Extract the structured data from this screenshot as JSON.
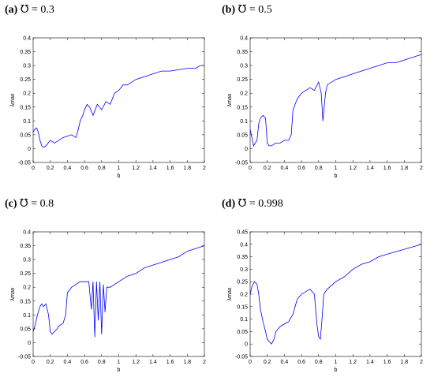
{
  "chart_data": [
    {
      "type": "line",
      "label": "(a)",
      "title": "℧ = 0.3",
      "xlabel": "b",
      "ylabel": "λmax",
      "xlim": [
        0,
        2
      ],
      "ylim": [
        -0.05,
        0.4
      ],
      "xticks": [
        "0",
        "0.2",
        "0.4",
        "0.6",
        "0.8",
        "1",
        "1.2",
        "1.4",
        "1.6",
        "1.8",
        "2"
      ],
      "yticks": [
        "-0.05",
        "0",
        "0.05",
        "0.1",
        "0.15",
        "0.2",
        "0.25",
        "0.3",
        "0.35",
        "0.4"
      ],
      "color": "#0000ff",
      "series": [
        {
          "x": [
            0,
            0.02,
            0.04,
            0.06,
            0.08,
            0.1,
            0.12,
            0.15,
            0.2,
            0.25,
            0.3,
            0.35,
            0.4,
            0.45,
            0.5,
            0.52,
            0.55,
            0.58,
            0.6,
            0.63,
            0.66,
            0.7,
            0.75,
            0.8,
            0.85,
            0.9,
            0.95,
            1.0,
            1.05,
            1.1,
            1.15,
            1.2,
            1.3,
            1.4,
            1.5,
            1.6,
            1.7,
            1.8,
            1.9,
            1.95,
            2.0
          ],
          "y": [
            0.06,
            0.07,
            0.075,
            0.06,
            0.03,
            0.01,
            0.005,
            0.01,
            0.03,
            0.02,
            0.03,
            0.04,
            0.045,
            0.05,
            0.04,
            0.06,
            0.1,
            0.12,
            0.14,
            0.16,
            0.15,
            0.12,
            0.16,
            0.14,
            0.17,
            0.16,
            0.2,
            0.21,
            0.23,
            0.23,
            0.24,
            0.25,
            0.26,
            0.27,
            0.28,
            0.28,
            0.285,
            0.29,
            0.29,
            0.3,
            0.3
          ]
        }
      ]
    },
    {
      "type": "line",
      "label": "(b)",
      "title": "℧ = 0.5",
      "xlabel": "b",
      "ylabel": "λmax",
      "xlim": [
        0,
        2
      ],
      "ylim": [
        -0.05,
        0.4
      ],
      "xticks": [
        "0",
        "0.2",
        "0.4",
        "0.6",
        "0.8",
        "1",
        "1.2",
        "1.4",
        "1.6",
        "1.8",
        "2"
      ],
      "yticks": [
        "-0.05",
        "0",
        "0.05",
        "0.1",
        "0.15",
        "0.2",
        "0.25",
        "0.3",
        "0.35",
        "0.4"
      ],
      "color": "#0000ff",
      "series": [
        {
          "x": [
            0,
            0.02,
            0.04,
            0.06,
            0.08,
            0.1,
            0.12,
            0.15,
            0.18,
            0.2,
            0.22,
            0.25,
            0.3,
            0.35,
            0.4,
            0.45,
            0.48,
            0.5,
            0.55,
            0.6,
            0.65,
            0.7,
            0.75,
            0.8,
            0.83,
            0.85,
            0.88,
            0.9,
            0.95,
            1.0,
            1.1,
            1.2,
            1.3,
            1.4,
            1.5,
            1.6,
            1.7,
            1.8,
            1.9,
            2.0
          ],
          "y": [
            0.07,
            0.04,
            0.01,
            0.02,
            0.03,
            0.09,
            0.11,
            0.12,
            0.11,
            0.02,
            0.01,
            0.01,
            0.02,
            0.02,
            0.03,
            0.03,
            0.05,
            0.14,
            0.18,
            0.2,
            0.21,
            0.22,
            0.21,
            0.24,
            0.2,
            0.1,
            0.2,
            0.23,
            0.24,
            0.25,
            0.26,
            0.27,
            0.28,
            0.29,
            0.3,
            0.31,
            0.31,
            0.32,
            0.33,
            0.34
          ]
        }
      ]
    },
    {
      "type": "line",
      "label": "(c)",
      "title": "℧ = 0.8",
      "xlabel": "b",
      "ylabel": "λmax",
      "xlim": [
        0,
        2
      ],
      "ylim": [
        -0.05,
        0.4
      ],
      "xticks": [
        "0",
        "0.2",
        "0.4",
        "0.6",
        "0.8",
        "1",
        "1.2",
        "1.4",
        "1.6",
        "1.8",
        "2"
      ],
      "yticks": [
        "-0.05",
        "0",
        "0.05",
        "0.1",
        "0.15",
        "0.2",
        "0.25",
        "0.3",
        "0.35",
        "0.4"
      ],
      "color": "#0000ff",
      "series": [
        {
          "x": [
            0,
            0.02,
            0.05,
            0.08,
            0.1,
            0.12,
            0.15,
            0.18,
            0.2,
            0.22,
            0.25,
            0.28,
            0.3,
            0.35,
            0.38,
            0.4,
            0.45,
            0.5,
            0.55,
            0.6,
            0.65,
            0.68,
            0.7,
            0.72,
            0.74,
            0.76,
            0.78,
            0.8,
            0.82,
            0.84,
            0.86,
            0.9,
            1.0,
            1.1,
            1.2,
            1.3,
            1.4,
            1.5,
            1.6,
            1.7,
            1.8,
            1.9,
            2.0
          ],
          "y": [
            0.04,
            0.06,
            0.1,
            0.13,
            0.14,
            0.13,
            0.14,
            0.1,
            0.04,
            0.03,
            0.04,
            0.05,
            0.06,
            0.07,
            0.1,
            0.18,
            0.2,
            0.21,
            0.22,
            0.22,
            0.22,
            0.12,
            0.22,
            0.02,
            0.22,
            0.08,
            0.22,
            0.03,
            0.21,
            0.11,
            0.2,
            0.2,
            0.22,
            0.24,
            0.25,
            0.27,
            0.28,
            0.29,
            0.3,
            0.31,
            0.33,
            0.34,
            0.35
          ]
        }
      ]
    },
    {
      "type": "line",
      "label": "(d)",
      "title": "℧ = 0.998",
      "xlabel": "b",
      "ylabel": "λmax",
      "xlim": [
        0,
        2
      ],
      "ylim": [
        -0.05,
        0.45
      ],
      "xticks": [
        "0",
        "0.2",
        "0.4",
        "0.6",
        "0.8",
        "1",
        "1.2",
        "1.4",
        "1.6",
        "1.8",
        "2"
      ],
      "yticks": [
        "-0.05",
        "0",
        "0.05",
        "0.1",
        "0.15",
        "0.2",
        "0.25",
        "0.3",
        "0.35",
        "0.4",
        "0.45"
      ],
      "color": "#0000ff",
      "series": [
        {
          "x": [
            0,
            0.02,
            0.05,
            0.08,
            0.1,
            0.12,
            0.15,
            0.18,
            0.2,
            0.22,
            0.25,
            0.28,
            0.3,
            0.35,
            0.4,
            0.45,
            0.5,
            0.55,
            0.6,
            0.65,
            0.7,
            0.75,
            0.78,
            0.8,
            0.82,
            0.84,
            0.86,
            0.9,
            1.0,
            1.1,
            1.2,
            1.3,
            1.4,
            1.5,
            1.6,
            1.7,
            1.8,
            1.9,
            2.0
          ],
          "y": [
            0.2,
            0.23,
            0.25,
            0.24,
            0.2,
            0.14,
            0.09,
            0.05,
            0.02,
            0.01,
            0.0,
            0.02,
            0.05,
            0.07,
            0.08,
            0.09,
            0.12,
            0.18,
            0.2,
            0.21,
            0.22,
            0.2,
            0.08,
            0.03,
            0.02,
            0.1,
            0.2,
            0.22,
            0.25,
            0.27,
            0.3,
            0.32,
            0.33,
            0.35,
            0.36,
            0.37,
            0.38,
            0.39,
            0.4
          ]
        }
      ]
    }
  ]
}
